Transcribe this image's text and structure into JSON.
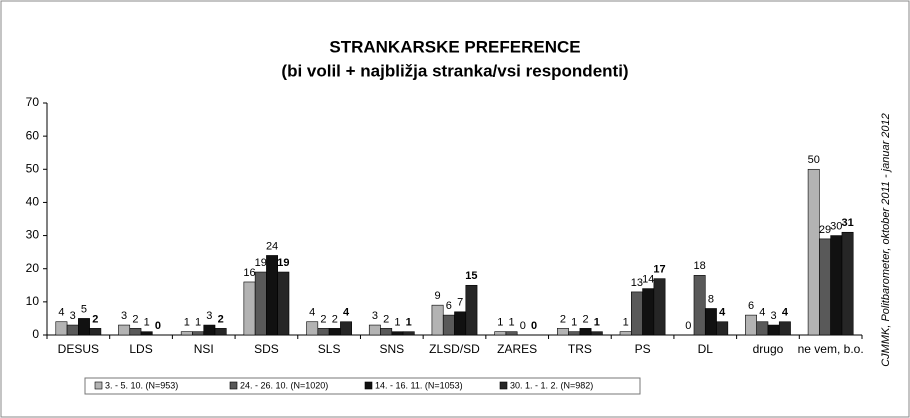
{
  "chart_data": {
    "type": "bar",
    "title": "STRANKARSKE PREFERENCE",
    "subtitle": "(bi volil + najbližja stranka/vsi respondenti)",
    "source": "CJMMK, Politbarometer, oktober 2011 - januar 2012",
    "categories": [
      "DESUS",
      "LDS",
      "NSI",
      "SDS",
      "SLS",
      "SNS",
      "ZLSD/SD",
      "ZARES",
      "TRS",
      "PS",
      "DL",
      "drugo",
      "ne vem, b.o."
    ],
    "series": [
      {
        "name": "3. - 5. 10. (N=953)",
        "color": "#b3b3b3",
        "values": [
          4,
          3,
          1,
          16,
          4,
          3,
          9,
          1,
          2,
          1,
          0,
          6,
          50
        ]
      },
      {
        "name": "24. - 26. 10. (N=1020)",
        "color": "#595959",
        "values": [
          3,
          2,
          1,
          19,
          2,
          2,
          6,
          1,
          1,
          13,
          18,
          4,
          29
        ]
      },
      {
        "name": "14. - 16. 11. (N=1053)",
        "color": "#111111",
        "values": [
          5,
          1,
          3,
          24,
          2,
          1,
          7,
          0,
          2,
          14,
          8,
          3,
          30
        ]
      },
      {
        "name": "30. 1. - 1. 2. (N=982)",
        "color": "#262626",
        "values": [
          2,
          0,
          2,
          19,
          4,
          1,
          15,
          0,
          1,
          17,
          4,
          4,
          31
        ]
      }
    ],
    "ylim": [
      0,
      70
    ],
    "yticks": [
      0,
      10,
      20,
      30,
      40,
      50,
      60,
      70
    ],
    "grid": false
  }
}
